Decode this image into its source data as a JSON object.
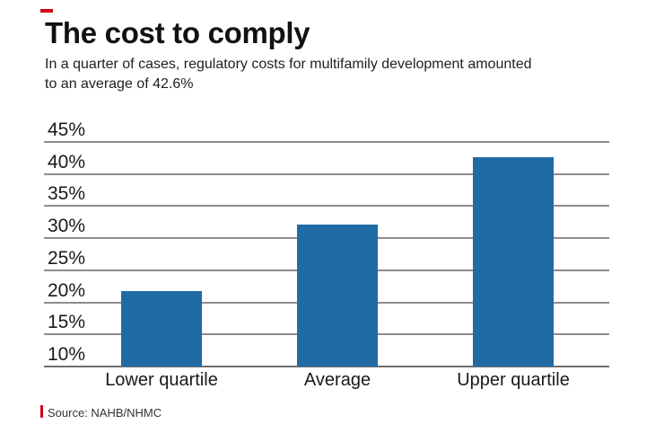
{
  "brand": {
    "dash_color": "#d0021b"
  },
  "header": {
    "title": "The cost to comply",
    "subtitle_lines": [
      "In a quarter of cases, regulatory costs for multifamily development amounted",
      "to an average of 42.6%"
    ]
  },
  "chart_data": {
    "type": "bar",
    "title": "The cost to comply",
    "subtitle": "In a quarter of cases, regulatory costs for multifamily development amounted to an average of 42.6%",
    "categories": [
      "Lower quartile",
      "Average",
      "Upper quartile"
    ],
    "values": [
      21.7,
      32.1,
      42.6
    ],
    "ylim": [
      10,
      45
    ],
    "ytick_step": 5,
    "yticks": [
      "45%",
      "40%",
      "35%",
      "30%",
      "25%",
      "20%",
      "15%",
      "10%"
    ],
    "grid": true,
    "legend_position": "none",
    "bar_color": "#1e6ba6",
    "gridline_color": "#8d8d8d",
    "baseline_color": "#6f6f6f",
    "axis_text_color": "#1a1a1a"
  },
  "footer": {
    "source": "Source: NAHB/NHMC"
  }
}
